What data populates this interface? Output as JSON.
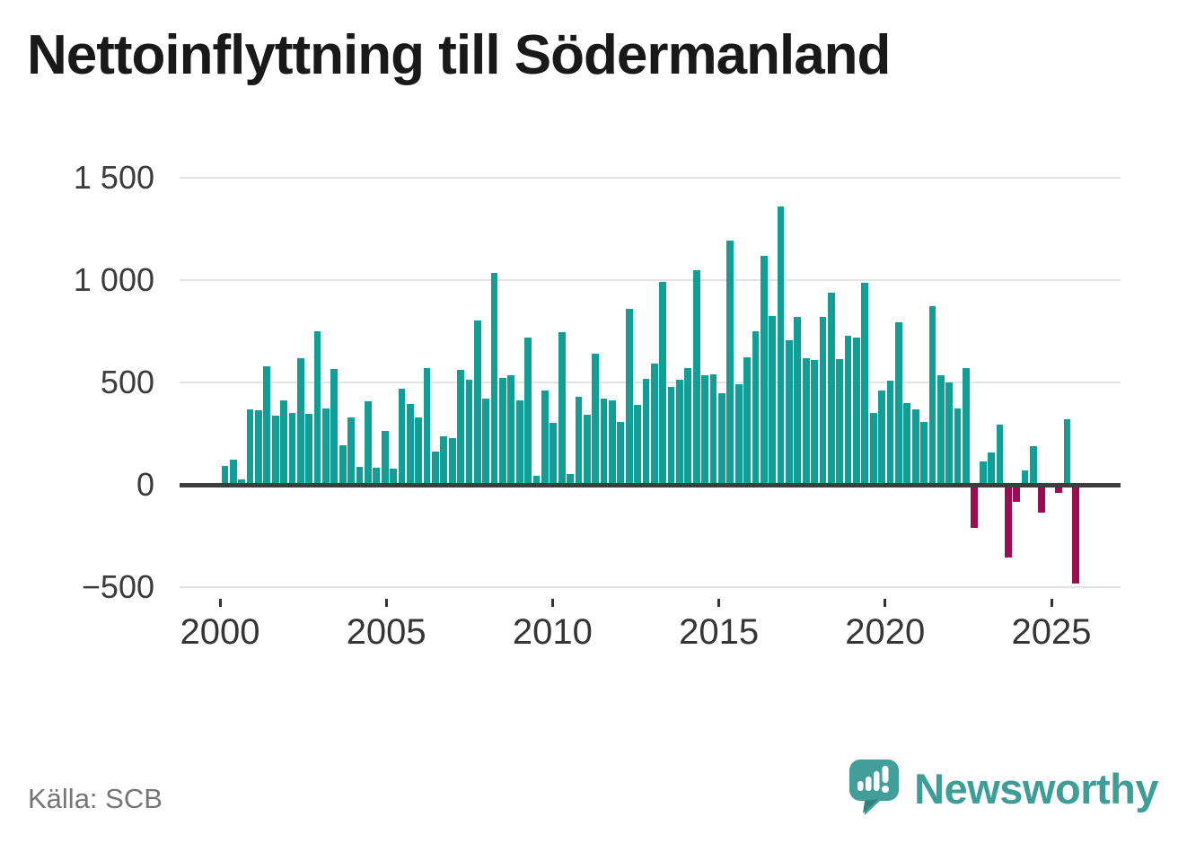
{
  "title": "Nettoinflyttning till Södermanland",
  "source": "Källa: SCB",
  "brand": {
    "name": "Newsworthy",
    "logo_icon": "speech-bubble-barchart-icon"
  },
  "colors": {
    "positive_bar": "#119e97",
    "negative_bar": "#9c0d50",
    "zero_line": "#3d3d3d",
    "gridline": "#e3e3e3",
    "title_text": "#191919",
    "axis_text": "#3c3c3c",
    "source_text": "#767676",
    "brand": "#3e9d97"
  },
  "chart_data": {
    "type": "bar",
    "title": "Nettoinflyttning till Södermanland",
    "xlabel": "",
    "ylabel": "",
    "frequency": "quarterly",
    "start_period": "2000Q1",
    "end_period": "2025Q2",
    "ylim": [
      -500,
      1500
    ],
    "grid": true,
    "legend_position": "none",
    "y_ticks": [
      1500,
      1000,
      500,
      0,
      -500
    ],
    "y_tick_labels": [
      "1 500",
      "1 000",
      "500",
      "0",
      "−500"
    ],
    "x_tick_labels": [
      "2000",
      "2005",
      "2010",
      "2015",
      "2020",
      "2025"
    ],
    "series": [
      {
        "name": "Nettoinflyttning",
        "values": [
          90,
          125,
          25,
          368,
          362,
          578,
          338,
          413,
          351,
          620,
          348,
          751,
          374,
          565,
          191,
          330,
          87,
          408,
          84,
          265,
          81,
          471,
          396,
          330,
          570,
          163,
          237,
          230,
          563,
          513,
          801,
          420,
          1036,
          524,
          537,
          413,
          719,
          45,
          461,
          303,
          746,
          54,
          431,
          344,
          642,
          422,
          412,
          309,
          858,
          390,
          516,
          590,
          990,
          480,
          512,
          568,
          1048,
          535,
          541,
          448,
          1195,
          490,
          625,
          748,
          1120,
          825,
          1360,
          704,
          820,
          620,
          610,
          820,
          937,
          613,
          727,
          721,
          988,
          353,
          462,
          510,
          795,
          400,
          367,
          307,
          872,
          537,
          500,
          375,
          570,
          -210,
          115,
          160,
          295,
          -355,
          -85,
          70,
          187,
          -135,
          0,
          -40,
          319,
          -482
        ]
      }
    ]
  }
}
